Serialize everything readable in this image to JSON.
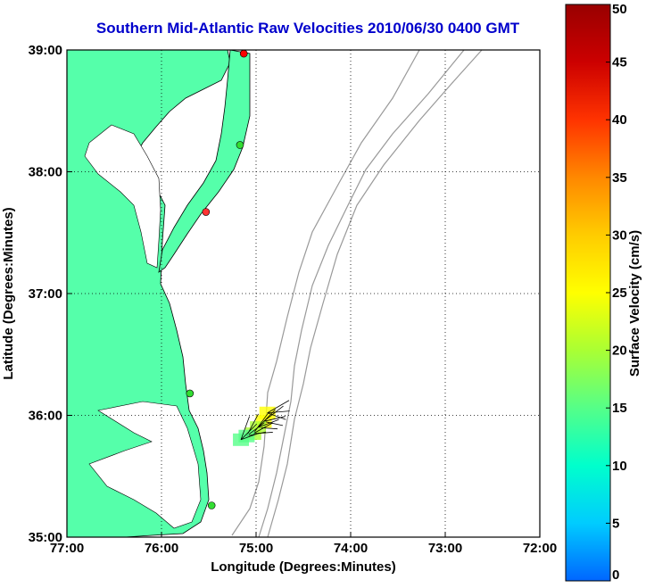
{
  "title": "Southern Mid-Atlantic Raw Velocities 2010/06/30 0400 GMT",
  "map": {
    "xlabel": "Longitude (Degrees:Minutes)",
    "ylabel": "Latitude (Degrees:Minutes)",
    "x_ticks": [
      "77:00",
      "76:00",
      "75:00",
      "74:00",
      "73:00",
      "72:00"
    ],
    "y_ticks": [
      "39:00",
      "38:00",
      "37:00",
      "36:00",
      "35:00"
    ],
    "lon_range": [
      -77,
      -72
    ],
    "lat_range": [
      35,
      39
    ],
    "land_color": "#55ffaa",
    "grid": true
  },
  "colorbar": {
    "label": "Surface Velocity (cm/s)",
    "ticks": [
      "50",
      "45",
      "40",
      "35",
      "30",
      "25",
      "20",
      "15",
      "10",
      "5",
      "0"
    ],
    "range": [
      0,
      50
    ],
    "colors": [
      "#0066ff",
      "#00ccff",
      "#00ffcc",
      "#55ff88",
      "#aaff33",
      "#ffff00",
      "#ffcc00",
      "#ff8800",
      "#ff3300",
      "#cc0000",
      "#990000"
    ]
  },
  "sites": [
    {
      "lon": -75.13,
      "lat": 38.97,
      "color": "#ff0000"
    },
    {
      "lon": -75.17,
      "lat": 38.22,
      "color": "#33dd33"
    },
    {
      "lon": -75.53,
      "lat": 37.67,
      "color": "#ff3333"
    },
    {
      "lon": -75.7,
      "lat": 36.18,
      "color": "#33dd33"
    },
    {
      "lon": -75.47,
      "lat": 35.26,
      "color": "#33dd33"
    }
  ],
  "velocities": [
    {
      "lon": -74.88,
      "lat": 36.02,
      "speed": 26
    },
    {
      "lon": -74.92,
      "lat": 35.95,
      "speed": 24
    },
    {
      "lon": -74.98,
      "lat": 35.9,
      "speed": 20
    },
    {
      "lon": -75.03,
      "lat": 35.85,
      "speed": 18
    },
    {
      "lon": -75.1,
      "lat": 35.83,
      "speed": 16
    },
    {
      "lon": -75.16,
      "lat": 35.8,
      "speed": 15
    }
  ]
}
